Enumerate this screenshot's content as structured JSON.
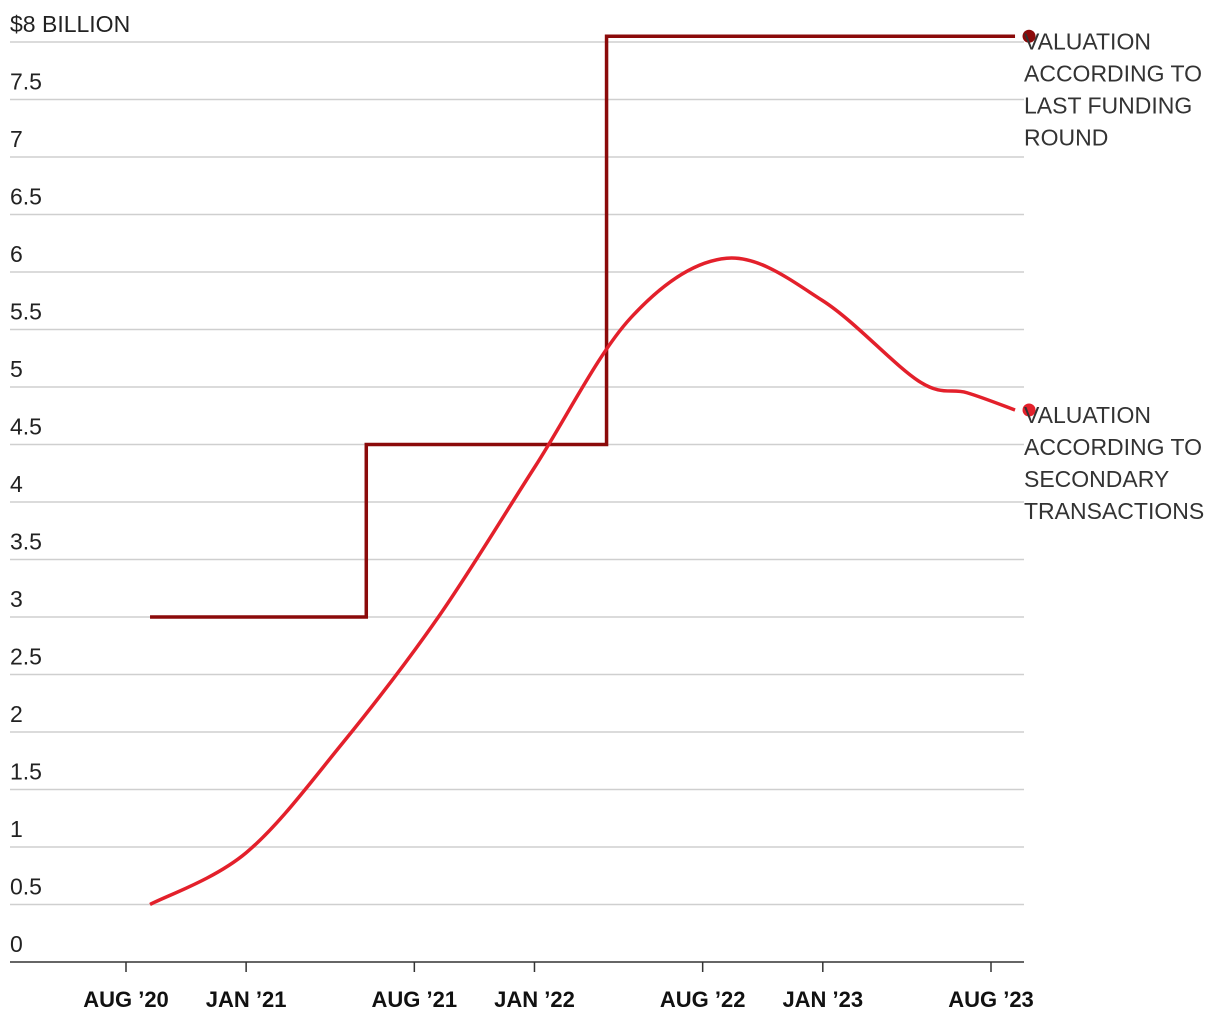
{
  "chart_data": {
    "type": "line",
    "title": "",
    "xlabel": "",
    "ylabel": "",
    "ylim": [
      0,
      8
    ],
    "yticks": [
      {
        "value": 8,
        "label": "$8 BILLION"
      },
      {
        "value": 7.5,
        "label": "7.5"
      },
      {
        "value": 7,
        "label": "7"
      },
      {
        "value": 6.5,
        "label": "6.5"
      },
      {
        "value": 6,
        "label": "6"
      },
      {
        "value": 5.5,
        "label": "5.5"
      },
      {
        "value": 5,
        "label": "5"
      },
      {
        "value": 4.5,
        "label": "4.5"
      },
      {
        "value": 4,
        "label": "4"
      },
      {
        "value": 3.5,
        "label": "3.5"
      },
      {
        "value": 3,
        "label": "3"
      },
      {
        "value": 2.5,
        "label": "2.5"
      },
      {
        "value": 2,
        "label": "2"
      },
      {
        "value": 1.5,
        "label": "1.5"
      },
      {
        "value": 1,
        "label": "1"
      },
      {
        "value": 0.5,
        "label": "0.5"
      },
      {
        "value": 0,
        "label": "0"
      }
    ],
    "xticks": [
      {
        "date": "2020-08",
        "label": "AUG ’20"
      },
      {
        "date": "2021-01",
        "label": "JAN ’21"
      },
      {
        "date": "2021-08",
        "label": "AUG ’21"
      },
      {
        "date": "2022-01",
        "label": "JAN ’22"
      },
      {
        "date": "2022-08",
        "label": "AUG ’22"
      },
      {
        "date": "2023-01",
        "label": "JAN ’23"
      },
      {
        "date": "2023-08",
        "label": "AUG ’23"
      }
    ],
    "grid": true,
    "series": [
      {
        "label": "VALUATION ACCORDING TO LAST FUNDING ROUND",
        "color": "#8b0a0a",
        "shape": "step",
        "points": [
          {
            "date": "2020-09",
            "value": 3
          },
          {
            "date": "2021-06",
            "value": 4.5
          },
          {
            "date": "2022-04",
            "value": 8.05
          },
          {
            "date": "2023-09",
            "value": 8.05
          }
        ]
      },
      {
        "label": "VALUATION ACCORDING TO SECONDARY TRANSACTIONS",
        "color": "#e3202b",
        "shape": "smooth",
        "points": [
          {
            "date": "2020-09",
            "value": 0.5
          },
          {
            "date": "2021-01",
            "value": 0.95
          },
          {
            "date": "2021-05",
            "value": 1.9
          },
          {
            "date": "2021-09",
            "value": 3.0
          },
          {
            "date": "2022-01",
            "value": 4.3
          },
          {
            "date": "2022-05",
            "value": 5.6
          },
          {
            "date": "2022-09",
            "value": 6.12
          },
          {
            "date": "2023-01",
            "value": 5.75
          },
          {
            "date": "2023-05",
            "value": 5.05
          },
          {
            "date": "2023-07",
            "value": 4.95
          },
          {
            "date": "2023-09",
            "value": 4.8
          }
        ]
      }
    ]
  }
}
